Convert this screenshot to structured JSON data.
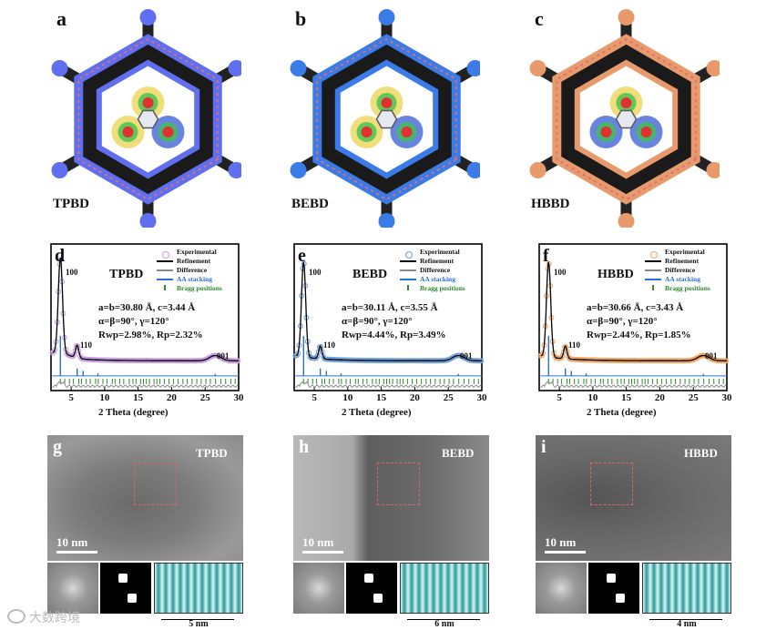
{
  "panels_top": [
    {
      "letter": "a",
      "name": "TPBD",
      "color": "#5f6ff0"
    },
    {
      "letter": "b",
      "name": "BEBD",
      "color": "#3a7be8"
    },
    {
      "letter": "c",
      "name": "HBBD",
      "color": "#e79a6c"
    }
  ],
  "xrd_panels": [
    {
      "letter": "d",
      "name": "TPBD",
      "exp_color": "#c79be0",
      "params": [
        "a=b=30.80 Å, c=3.44 Å",
        "α=β=90°, γ=120°",
        "Rwp=2.98%, Rp=2.32%"
      ],
      "peak100": "100",
      "peak110": "110",
      "peak001": "001"
    },
    {
      "letter": "e",
      "name": "BEBD",
      "exp_color": "#6fa0d8",
      "params": [
        "a=b=30.11 Å, c=3.55 Å",
        "α=β=90°, γ=120°",
        "Rwp=4.44%, Rp=3.49%"
      ],
      "peak100": "100",
      "peak110": "110",
      "peak001": "001"
    },
    {
      "letter": "f",
      "name": "HBBD",
      "exp_color": "#f0a460",
      "params": [
        "a=b=30.66 Å, c=3.43 Å",
        "α=β=90°, γ=120°",
        "Rwp=2.44%, Rp=1.85%"
      ],
      "peak100": "100",
      "peak110": "110",
      "peak001": "001"
    }
  ],
  "legend": [
    "Experimental",
    "Refinement",
    "Difference",
    "AA stacking",
    "Bragg positions"
  ],
  "xaxis_label": "2 Theta (degree)",
  "xticks": [
    "5",
    "10",
    "15",
    "20",
    "25",
    "30"
  ],
  "tem_panels": [
    {
      "letter": "g",
      "name": "TPBD",
      "scale": "10 nm",
      "fringe": "5 nm"
    },
    {
      "letter": "h",
      "name": "BEBD",
      "scale": "10 nm",
      "fringe": "6 nm"
    },
    {
      "letter": "i",
      "name": "HBBD",
      "scale": "10 nm",
      "fringe": "4 nm"
    }
  ],
  "watermark": "大数跨境",
  "chart_data": [
    {
      "type": "line",
      "title": "TPBD",
      "xlabel": "2 Theta (degree)",
      "xlim": [
        2,
        30
      ],
      "series": [
        {
          "name": "Experimental"
        },
        {
          "name": "Refinement"
        },
        {
          "name": "Difference"
        },
        {
          "name": "AA stacking"
        },
        {
          "name": "Bragg positions"
        }
      ],
      "annotations": [
        "100",
        "110",
        "001"
      ]
    },
    {
      "type": "line",
      "title": "BEBD",
      "xlabel": "2 Theta (degree)",
      "xlim": [
        2,
        30
      ],
      "series": [
        {
          "name": "Experimental"
        },
        {
          "name": "Refinement"
        },
        {
          "name": "Difference"
        },
        {
          "name": "AA stacking"
        },
        {
          "name": "Bragg positions"
        }
      ],
      "annotations": [
        "100",
        "110",
        "001"
      ]
    },
    {
      "type": "line",
      "title": "HBBD",
      "xlabel": "2 Theta (degree)",
      "xlim": [
        2,
        30
      ],
      "series": [
        {
          "name": "Experimental"
        },
        {
          "name": "Refinement"
        },
        {
          "name": "Difference"
        },
        {
          "name": "AA stacking"
        },
        {
          "name": "Bragg positions"
        }
      ],
      "annotations": [
        "100",
        "110",
        "001"
      ]
    }
  ]
}
